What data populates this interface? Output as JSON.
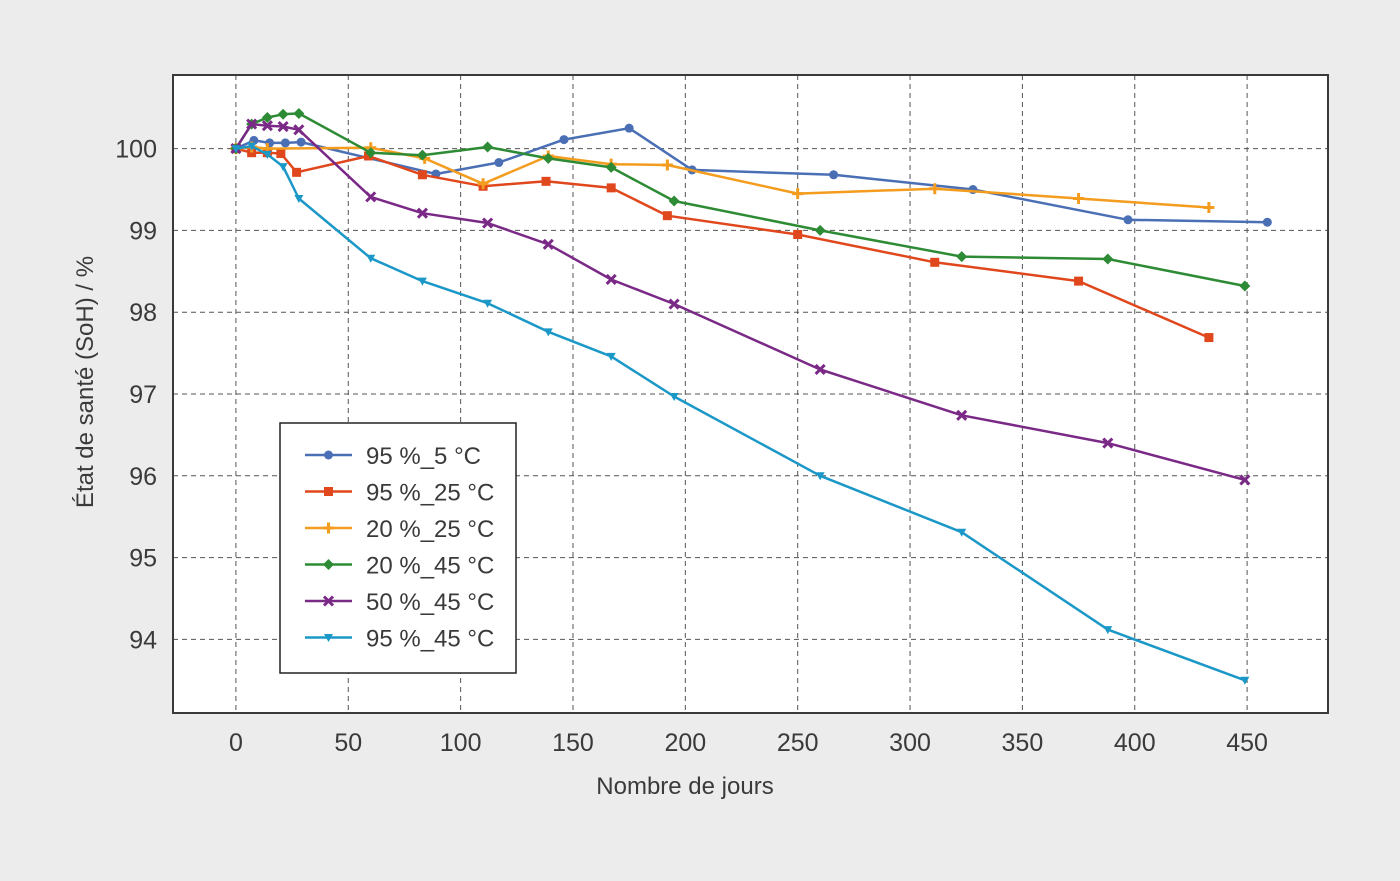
{
  "chart_data": {
    "type": "line",
    "title": "",
    "xlabel": "Nombre de jours",
    "ylabel": "État de santé (SoH) / %",
    "xlim": [
      -28,
      486
    ],
    "ylim": [
      93.1,
      100.9
    ],
    "xticks": [
      0,
      50,
      100,
      150,
      200,
      250,
      300,
      350,
      400,
      450
    ],
    "yticks": [
      94,
      95,
      96,
      97,
      98,
      99,
      100
    ],
    "grid": true,
    "legend_position": "bottom-left",
    "series": [
      {
        "name": "95 %_5 °C",
        "color": "#4a6fb5",
        "marker": "circle",
        "x": [
          0,
          8,
          15,
          22,
          29,
          89,
          117,
          146,
          175,
          203,
          266,
          328,
          397,
          459
        ],
        "y": [
          100.0,
          100.1,
          100.07,
          100.07,
          100.08,
          99.69,
          99.83,
          100.11,
          100.25,
          99.74,
          99.68,
          99.5,
          99.13,
          99.1
        ]
      },
      {
        "name": "95 %_25 °C",
        "color": "#e0471c",
        "marker": "square",
        "x": [
          0,
          7,
          14,
          20,
          27,
          59,
          83,
          110,
          138,
          167,
          192,
          250,
          311,
          375,
          433
        ],
        "y": [
          100.0,
          99.95,
          99.95,
          99.94,
          99.71,
          99.91,
          99.68,
          99.54,
          99.6,
          99.52,
          99.18,
          98.95,
          98.61,
          98.38,
          97.69
        ]
      },
      {
        "name": "20 %_25 °C",
        "color": "#f39c1e",
        "marker": "plus",
        "x": [
          0,
          7,
          14,
          60,
          84,
          110,
          139,
          167,
          192,
          250,
          311,
          375,
          433
        ],
        "y": [
          100.0,
          100.02,
          100.0,
          100.01,
          99.88,
          99.57,
          99.91,
          99.81,
          99.8,
          99.45,
          99.51,
          99.39,
          99.28
        ]
      },
      {
        "name": "20 %_45 °C",
        "color": "#2e8b35",
        "marker": "diamond",
        "x": [
          0,
          7,
          14,
          21,
          28,
          60,
          83,
          112,
          139,
          167,
          195,
          260,
          323,
          388,
          449
        ],
        "y": [
          100.0,
          100.3,
          100.38,
          100.42,
          100.43,
          99.95,
          99.92,
          100.02,
          99.88,
          99.77,
          99.36,
          99.0,
          98.68,
          98.65,
          98.32
        ]
      },
      {
        "name": "50 %_45 °C",
        "color": "#7a2a86",
        "marker": "x",
        "x": [
          0,
          7,
          14,
          21,
          28,
          60,
          83,
          112,
          139,
          167,
          195,
          260,
          323,
          388,
          449
        ],
        "y": [
          100.0,
          100.3,
          100.28,
          100.27,
          100.23,
          99.41,
          99.21,
          99.09,
          98.83,
          98.4,
          98.1,
          97.3,
          96.74,
          96.4,
          95.95
        ]
      },
      {
        "name": "95 %_45 °C",
        "color": "#1b98c7",
        "marker": "triangle-down",
        "x": [
          0,
          7,
          14,
          21,
          28,
          60,
          83,
          112,
          139,
          167,
          195,
          260,
          323,
          388,
          449
        ],
        "y": [
          100.0,
          100.03,
          99.93,
          99.78,
          99.39,
          98.66,
          98.38,
          98.11,
          97.76,
          97.46,
          96.97,
          96.0,
          95.31,
          94.12,
          93.5
        ]
      }
    ]
  }
}
